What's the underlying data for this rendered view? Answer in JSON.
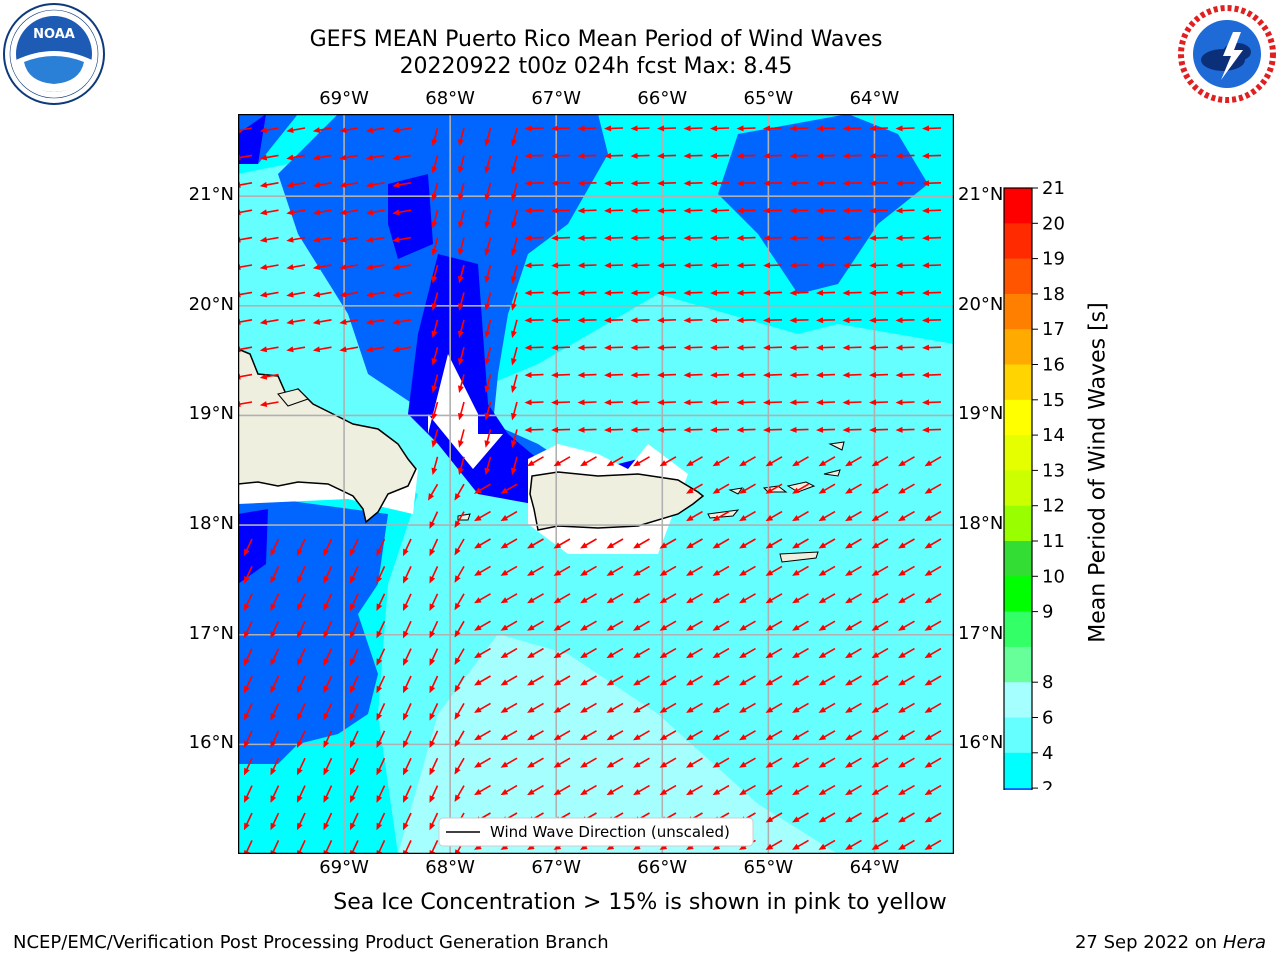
{
  "header": {
    "title_line1": "GEFS MEAN Puerto Rico Mean Period of Wind Waves",
    "title_line2": "20220922 t00z 024h fcst   Max: 8.45"
  },
  "logos": {
    "left": {
      "name": "NOAA",
      "ring_text": "NATIONAL OCEANIC AND ATMOSPHERIC ADMINISTRATION · U.S. DEPARTMENT OF COMMERCE"
    },
    "right": {
      "name": "NATIONAL WEATHER SERVICE"
    }
  },
  "map": {
    "lon_labels": [
      "69°W",
      "68°W",
      "67°W",
      "66°W",
      "65°W",
      "64°W"
    ],
    "lat_labels": [
      "21°N",
      "20°N",
      "19°N",
      "18°N",
      "17°N",
      "16°N"
    ],
    "lon_values": [
      -69,
      -68,
      -67,
      -66,
      -65,
      -64
    ],
    "lat_values": [
      21,
      20,
      19,
      18,
      17,
      16
    ],
    "extent": {
      "lon_min": -70,
      "lon_max": -63.25,
      "lat_min": 15,
      "lat_max": 21.75
    },
    "legend": "Wind Wave Direction (unscaled)",
    "arrow_color": "#ff0000",
    "land_color": "#efefdf",
    "ocean_colors": {
      "2-4": "#0066ff",
      "4-6": "#00ffff",
      "6-8": "#66ffff",
      "8-9": "#a6ffff",
      "below": "#0000ff"
    }
  },
  "colorbar": {
    "label": "Mean Period of Wind Waves [s]",
    "ticks": [
      "21",
      "20",
      "19",
      "18",
      "17",
      "16",
      "15",
      "14",
      "13",
      "12",
      "11",
      "10",
      "9",
      "8",
      "6",
      "4",
      "2"
    ],
    "colors": [
      "#ff0000",
      "#ff2a00",
      "#ff5500",
      "#ff7f00",
      "#ffaa00",
      "#ffd400",
      "#ffff00",
      "#e6ff00",
      "#ccff00",
      "#99ff00",
      "#33dd33",
      "#00ff00",
      "#33ff66",
      "#66ff99",
      "#a6ffff",
      "#66ffff",
      "#00ffff",
      "#0066ff"
    ],
    "under_color": "#0000ff"
  },
  "footer": {
    "note": "Sea Ice Concentration > 15% is shown in pink to yellow",
    "credit": "NCEP/EMC/Verification Post Processing Product Generation Branch",
    "date": "27 Sep 2022 on",
    "machine": "Hera"
  }
}
